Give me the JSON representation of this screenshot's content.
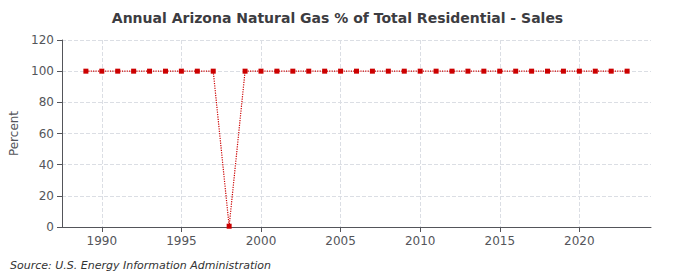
{
  "chart_data": {
    "type": "line",
    "title": "Annual Arizona Natural Gas % of Total Residential - Sales",
    "ylabel": "Percent",
    "source": "Source: U.S. Energy Information Administration",
    "x": [
      1989,
      1990,
      1991,
      1992,
      1993,
      1994,
      1995,
      1996,
      1997,
      1998,
      1999,
      2000,
      2001,
      2002,
      2003,
      2004,
      2005,
      2006,
      2007,
      2008,
      2009,
      2010,
      2011,
      2012,
      2013,
      2014,
      2015,
      2016,
      2017,
      2018,
      2019,
      2020,
      2021,
      2022,
      2023
    ],
    "values": [
      100,
      100,
      100,
      100,
      100,
      100,
      100,
      100,
      100,
      0.5,
      100,
      100,
      100,
      100,
      100,
      100,
      100,
      100,
      100,
      100,
      100,
      100,
      100,
      100,
      100,
      100,
      100,
      100,
      100,
      100,
      100,
      100,
      100,
      100,
      100
    ],
    "color": "#cc0000",
    "marker": "square",
    "line_style": "dotted",
    "xlim": [
      1987.5,
      2024.5
    ],
    "xticks": [
      1990,
      1995,
      2000,
      2005,
      2010,
      2015,
      2020
    ],
    "ylim": [
      0,
      120
    ],
    "yticks": [
      0,
      20,
      40,
      60,
      80,
      100,
      120
    ],
    "grid": true
  }
}
